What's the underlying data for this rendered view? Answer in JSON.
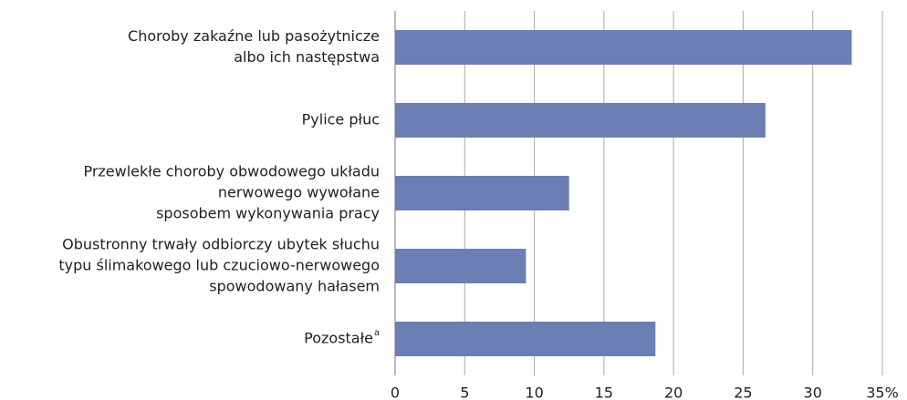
{
  "chart_data": {
    "type": "bar",
    "orientation": "horizontal",
    "categories": [
      [
        "Choroby zakaźne lub pasożytnicze",
        "albo ich następstwa"
      ],
      [
        "Pylice płuc"
      ],
      [
        "Przewlekłe choroby obwodowego układu",
        "nerwowego wywołane",
        "sposobem wykonywania pracy"
      ],
      [
        "Obustronny trwały odbiorczy ubytek słuchu",
        "typu ślimakowego lub czuciowo-nerwowego",
        "spowodowany hałasem"
      ],
      [
        "Pozostałe"
      ]
    ],
    "footnote_marker": "a",
    "values": [
      32.8,
      26.6,
      12.5,
      9.4,
      18.7
    ],
    "color": "#6b7fb5",
    "xlim": [
      0,
      35
    ],
    "xticks": [
      0,
      5,
      10,
      15,
      20,
      25,
      30,
      {
        "value": 35,
        "label": "35%"
      }
    ],
    "grid": true
  }
}
